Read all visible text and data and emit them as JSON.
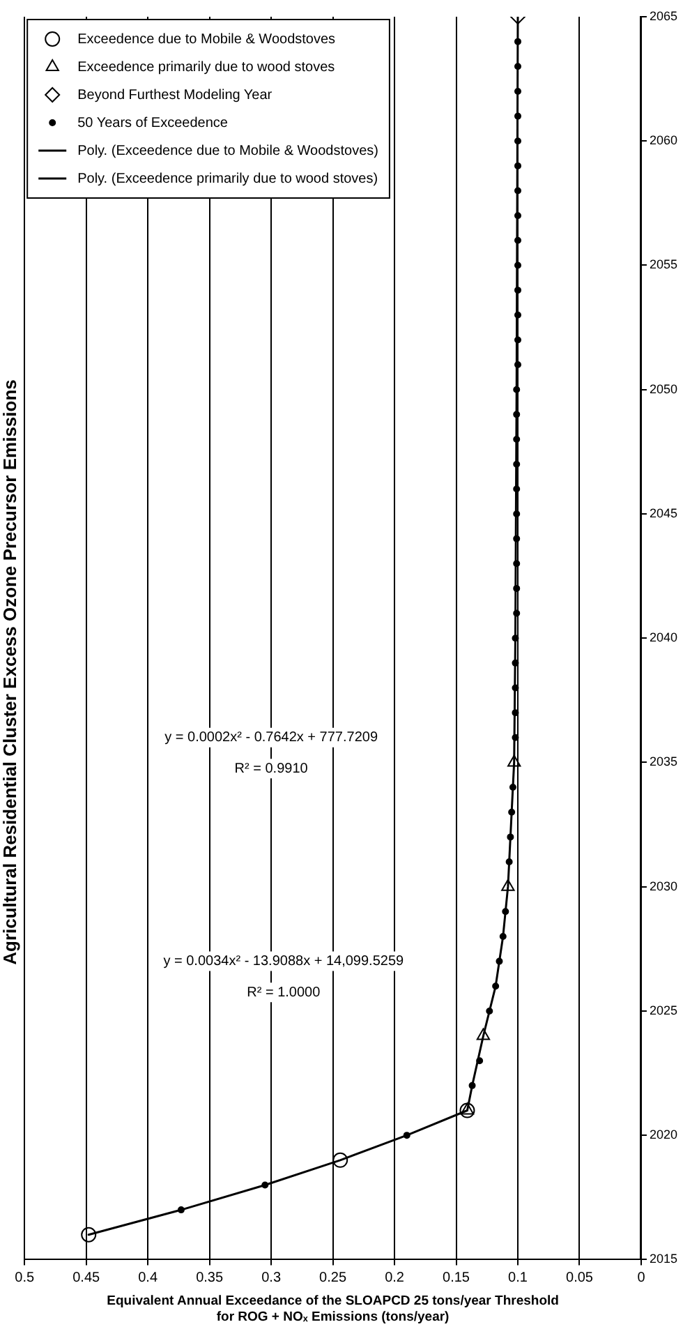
{
  "chart_data": {
    "type": "scatter",
    "title": "Agricultural Residential Cluster Excess Ozone Precursor Emissions",
    "xlabel": "Equivalent Annual Exceedance of the SLOAPCD 25 tons/year Threshold\nfor ROG + NOₓ Emissions (tons/year)",
    "xlim": [
      0.5,
      0
    ],
    "xticks": [
      0.5,
      0.45,
      0.4,
      0.35,
      0.3,
      0.25,
      0.2,
      0.15,
      0.1,
      0.05,
      0
    ],
    "ylim": [
      2015,
      2065
    ],
    "yticks": [
      2015,
      2020,
      2025,
      2030,
      2035,
      2040,
      2045,
      2050,
      2055,
      2060,
      2065
    ],
    "grid": "x",
    "legend": "top left",
    "annotations": [
      "y = 0.0034x² - 13.9088x + 14,099.5259",
      "R² = 1.0000",
      "y = 0.0002x² - 0.7642x + 777.7209",
      "R² = 0.9910"
    ],
    "series": [
      {
        "name": "Exceedence due to Mobile & Woodstoves",
        "marker": "circle",
        "color": "#000000",
        "x": [
          0.448,
          0.244,
          0.141
        ],
        "values": [
          2016,
          2019,
          2021
        ]
      },
      {
        "name": "Exceedence primarily due to wood stoves",
        "marker": "triangle",
        "color": "#000000",
        "x": [
          0.141,
          0.128,
          0.108,
          0.103
        ],
        "values": [
          2021,
          2024,
          2030,
          2035
        ]
      },
      {
        "name": "Beyond Furthest Modeling Year",
        "marker": "diamond",
        "color": "#000000",
        "x": [
          0.1
        ],
        "values": [
          2065
        ]
      },
      {
        "name": "50 Years of Exceedence",
        "marker": "circle",
        "color": "#000000",
        "x": [
          null,
          0.373,
          0.305,
          null,
          0.19,
          null,
          0.137,
          0.131,
          null,
          0.123,
          0.118,
          0.115,
          0.112,
          0.11,
          null,
          0.107,
          0.106,
          0.105,
          0.104,
          null,
          0.102,
          0.102,
          0.102,
          0.102,
          0.102,
          0.101,
          0.101,
          0.101,
          0.101,
          0.101,
          0.101,
          0.101,
          0.101,
          0.101,
          0.101,
          0.1,
          0.1,
          0.1,
          0.1,
          0.1,
          0.1,
          0.1,
          0.1,
          0.1,
          0.1,
          0.1,
          0.1,
          0.1,
          0.1,
          null
        ],
        "values": [
          null,
          2017,
          2018,
          null,
          2020,
          null,
          2022,
          2023,
          null,
          2025,
          2026,
          2027,
          2028,
          2029,
          null,
          2031,
          2032,
          2033,
          2034,
          null,
          2036,
          2037,
          2038,
          2039,
          2040,
          2041,
          2042,
          2043,
          2044,
          2045,
          2046,
          2047,
          2048,
          2049,
          2050,
          2051,
          2052,
          2053,
          2054,
          2055,
          2056,
          2057,
          2058,
          2059,
          2060,
          2061,
          2062,
          2063,
          2064,
          null
        ]
      },
      {
        "name": "Poly. (Exceedence due to Mobile & Woodstoves)",
        "type": "line",
        "color": "#000000",
        "x": [
          0.448,
          0.373,
          0.305,
          0.244,
          0.19,
          0.141
        ],
        "values": [
          2016,
          2017,
          2018,
          2019,
          2020,
          2021
        ]
      },
      {
        "name": "Poly. (Exceedence primarily due to wood stoves)",
        "type": "line",
        "color": "#000000",
        "x": [
          0.141,
          0.137,
          0.128,
          0.118,
          0.112,
          0.108,
          0.103,
          0.102,
          0.101,
          0.1
        ],
        "values": [
          2021,
          2022,
          2024,
          2026,
          2028,
          2030,
          2035,
          2040,
          2050,
          2065
        ]
      }
    ]
  }
}
